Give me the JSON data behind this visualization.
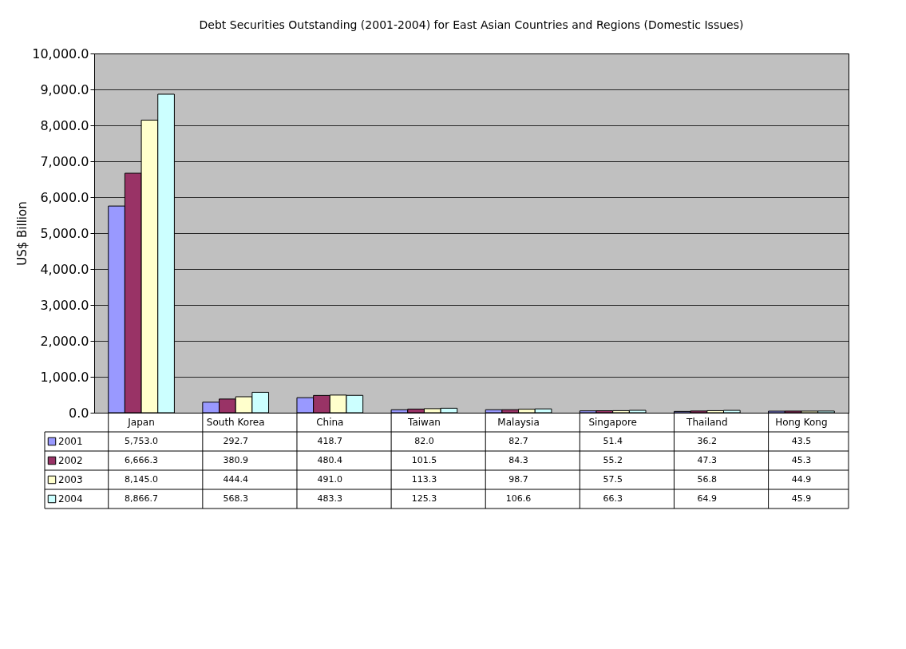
{
  "chart_data": {
    "type": "bar",
    "title": "Debt Securities Outstanding (2001-2004) for East Asian Countries and Regions (Domestic Issues)",
    "ylabel": "US$ Billion",
    "categories": [
      "Japan",
      "South Korea",
      "China",
      "Taiwan",
      "Malaysia",
      "Singapore",
      "Thailand",
      "Hong Kong"
    ],
    "series": [
      {
        "name": "2001",
        "color": "#9999ff",
        "values": [
          5753.0,
          292.7,
          418.7,
          82.0,
          82.7,
          51.4,
          36.2,
          43.5
        ],
        "value_labels": [
          "5,753.0",
          "292.7",
          "418.7",
          "82.0",
          "82.7",
          "51.4",
          "36.2",
          "43.5"
        ]
      },
      {
        "name": "2002",
        "color": "#993366",
        "values": [
          6666.3,
          380.9,
          480.4,
          101.5,
          84.3,
          55.2,
          47.3,
          45.3
        ],
        "value_labels": [
          "6,666.3",
          "380.9",
          "480.4",
          "101.5",
          "84.3",
          "55.2",
          "47.3",
          "45.3"
        ]
      },
      {
        "name": "2003",
        "color": "#ffffcc",
        "values": [
          8145.0,
          444.4,
          491.0,
          113.3,
          98.7,
          57.5,
          56.8,
          44.9
        ],
        "value_labels": [
          "8,145.0",
          "444.4",
          "491.0",
          "113.3",
          "98.7",
          "57.5",
          "56.8",
          "44.9"
        ]
      },
      {
        "name": "2004",
        "color": "#ccffff",
        "values": [
          8866.7,
          568.3,
          483.3,
          125.3,
          106.6,
          66.3,
          64.9,
          45.9
        ],
        "value_labels": [
          "8,866.7",
          "568.3",
          "483.3",
          "125.3",
          "106.6",
          "66.3",
          "64.9",
          "45.9"
        ]
      }
    ],
    "ylim": [
      0,
      10000
    ],
    "yticks": [
      {
        "value": 0,
        "label": "0.0"
      },
      {
        "value": 1000,
        "label": "1,000.0"
      },
      {
        "value": 2000,
        "label": "2,000.0"
      },
      {
        "value": 3000,
        "label": "3,000.0"
      },
      {
        "value": 4000,
        "label": "4,000.0"
      },
      {
        "value": 5000,
        "label": "5,000.0"
      },
      {
        "value": 6000,
        "label": "6,000.0"
      },
      {
        "value": 7000,
        "label": "7,000.0"
      },
      {
        "value": 8000,
        "label": "8,000.0"
      },
      {
        "value": 9000,
        "label": "9,000.0"
      },
      {
        "value": 10000,
        "label": "10,000.0"
      }
    ],
    "grid": "y",
    "legend": "bottom"
  }
}
